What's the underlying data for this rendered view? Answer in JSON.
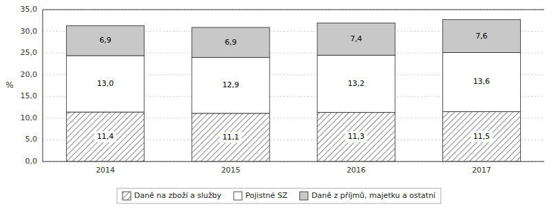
{
  "chart_data": {
    "type": "bar",
    "stacked": true,
    "data_labels": true,
    "grid": true,
    "legend": "bottom",
    "y_label": "%",
    "categories": [
      "2014",
      "2015",
      "2016",
      "2017"
    ],
    "series": [
      {
        "name": "Daně na zboží a služby",
        "color": "#ffffff",
        "values": [
          11.4,
          11.1,
          11.3,
          11.5
        ],
        "value_labels": [
          "11,4",
          "11,1",
          "11,3",
          "11,5"
        ]
      },
      {
        "name": "Pojistné SZ",
        "color": "#ffffff",
        "values": [
          13.0,
          12.9,
          13.2,
          13.6
        ],
        "value_labels": [
          "13,0",
          "12,9",
          "13,2",
          "13,6"
        ]
      },
      {
        "name": "Daně z příjmů, majetku a ostatní",
        "color": "#c8c8c8",
        "values": [
          6.9,
          6.9,
          7.4,
          7.6
        ],
        "value_labels": [
          "6,9",
          "6,9",
          "7,4",
          "7,6"
        ]
      }
    ],
    "ylim": [
      0,
      35
    ],
    "yticks": [
      {
        "value": 0.0,
        "label": "0,0"
      },
      {
        "value": 5.0,
        "label": "5,0"
      },
      {
        "value": 10.0,
        "label": "10,0"
      },
      {
        "value": 15.0,
        "label": "15,0"
      },
      {
        "value": 20.0,
        "label": "20,0"
      },
      {
        "value": 25.0,
        "label": "25,0"
      },
      {
        "value": 30.0,
        "label": "30,0"
      },
      {
        "value": 35.0,
        "label": "35,0"
      }
    ]
  }
}
